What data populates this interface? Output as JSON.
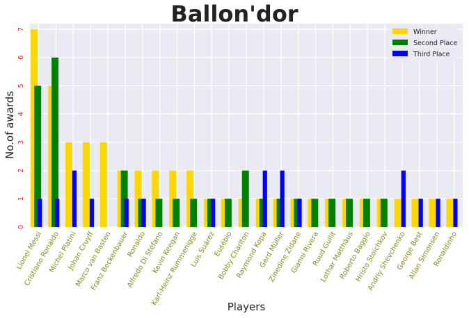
{
  "chart_data": {
    "type": "bar",
    "title": "Ballon'dor",
    "xlabel": "Players",
    "ylabel": "No.of awards",
    "ylim": [
      0,
      7.2
    ],
    "yticks": [
      "0",
      "1",
      "2",
      "3",
      "4",
      "5",
      "6",
      "7"
    ],
    "grid": true,
    "legend_position": "top-right",
    "categories": [
      "Lionel Messi",
      "Cristiano Ronaldo",
      "Michel Platini",
      "Johan Cruyff",
      "Marco van Basten",
      "Franz Beckenbauer",
      "Ronaldo",
      "Alfredo Di Stéfano",
      "Kevin Keegan",
      "Karl-Heinz Rummenigge",
      "Luis Suárez",
      "Eusébio",
      "Bobby Charlton",
      "Raymond Kopa",
      "Gerd Müller",
      "Zinedine Zidane",
      "Gianni Rivera",
      "Ruud Gullit",
      "Lothar Matthäus",
      "Roberto Baggio",
      "Hristo Stoichkov",
      "Andriy Shevchenko",
      "George Best",
      "Allan Simonsen",
      "Ronaldinho"
    ],
    "series": [
      {
        "name": "Winner",
        "color": "#ffd700",
        "values": [
          7,
          5,
          3,
          3,
          3,
          2,
          2,
          2,
          2,
          2,
          1,
          1,
          1,
          1,
          1,
          1,
          1,
          1,
          1,
          1,
          1,
          1,
          1,
          1,
          1
        ]
      },
      {
        "name": "Second Place",
        "color": "#008000",
        "values": [
          5,
          6,
          0,
          0,
          0,
          2,
          1,
          1,
          1,
          1,
          1,
          1,
          2,
          1,
          1,
          1,
          1,
          1,
          1,
          1,
          1,
          0,
          0,
          0,
          0
        ]
      },
      {
        "name": "Third Place",
        "color": "#0000ff",
        "values": [
          1,
          1,
          2,
          1,
          0,
          1,
          1,
          0,
          0,
          0,
          1,
          0,
          0,
          2,
          2,
          1,
          0,
          0,
          0,
          0,
          0,
          2,
          1,
          1,
          1
        ]
      }
    ]
  }
}
